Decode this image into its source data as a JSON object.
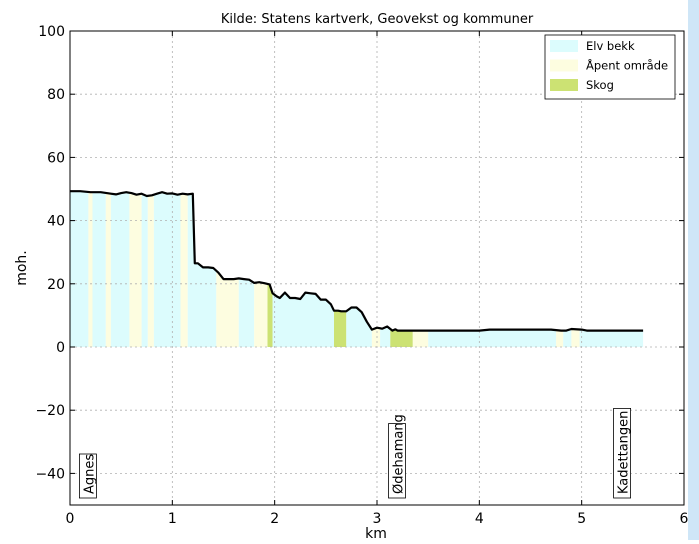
{
  "chart_data": {
    "type": "area",
    "title": "Kilde: Statens kartverk, Geovekst og kommuner",
    "xlabel": "km",
    "ylabel": "moh.",
    "xlim": [
      0,
      6
    ],
    "ylim": [
      -50,
      100
    ],
    "xticks": [
      0,
      1,
      2,
      3,
      4,
      5,
      6
    ],
    "yticks": [
      -40,
      -20,
      0,
      20,
      40,
      60,
      80,
      100
    ],
    "grid": true,
    "legend_position": "top-right",
    "legend": [
      {
        "label": "Elv bekk",
        "color": "#dcfcfd"
      },
      {
        "label": "Åpent område",
        "color": "#fdfde0"
      },
      {
        "label": "Skog",
        "color": "#cce273"
      }
    ],
    "colors": {
      "Elv bekk": "#dcfcfd",
      "Åpent område": "#fdfde0",
      "Skog": "#cce273",
      "elevation_line": "#000000"
    },
    "elevation_profile": {
      "x": [
        0,
        0.1,
        0.2,
        0.3,
        0.4,
        0.45,
        0.5,
        0.55,
        0.6,
        0.65,
        0.7,
        0.75,
        0.8,
        0.85,
        0.9,
        0.95,
        1.0,
        1.05,
        1.1,
        1.15,
        1.2,
        1.22,
        1.25,
        1.3,
        1.35,
        1.4,
        1.45,
        1.5,
        1.55,
        1.6,
        1.65,
        1.7,
        1.75,
        1.8,
        1.85,
        1.9,
        1.95,
        1.98,
        2.02,
        2.05,
        2.1,
        2.15,
        2.2,
        2.25,
        2.3,
        2.35,
        2.4,
        2.45,
        2.5,
        2.55,
        2.58,
        2.6,
        2.62,
        2.65,
        2.7,
        2.75,
        2.8,
        2.85,
        2.9,
        2.95,
        3.0,
        3.05,
        3.1,
        3.15,
        3.18,
        3.2,
        3.25,
        3.3,
        3.4,
        3.6,
        3.8,
        4.0,
        4.1,
        4.3,
        4.5,
        4.7,
        4.8,
        4.85,
        4.9,
        5.0,
        5.05,
        5.1,
        5.3,
        5.6
      ],
      "y": [
        49.3,
        49.3,
        49,
        49,
        48.5,
        48.3,
        48.7,
        49,
        48.7,
        48.2,
        48.5,
        47.8,
        48,
        48.5,
        49,
        48.5,
        48.6,
        48.2,
        48.5,
        48.3,
        48.5,
        26.5,
        26.5,
        25.2,
        25.2,
        25,
        23.5,
        21.5,
        21.5,
        21.5,
        21.7,
        21.5,
        21.3,
        20.3,
        20.5,
        20.2,
        19.8,
        17,
        16,
        15.5,
        17.2,
        15.5,
        15.5,
        15.2,
        17.2,
        17,
        16.8,
        15,
        15,
        13.5,
        11.5,
        11.5,
        11.5,
        11.3,
        11.3,
        12.5,
        12.5,
        11,
        8,
        5.5,
        6.1,
        5.8,
        6.5,
        5.2,
        5.6,
        5.2,
        5.2,
        5.2,
        5.2,
        5.2,
        5.2,
        5.2,
        5.5,
        5.5,
        5.5,
        5.5,
        5.2,
        5.2,
        5.7,
        5.5,
        5.2,
        5.2,
        5.2,
        5.2
      ]
    },
    "landcover_bands": [
      {
        "type": "Elv bekk",
        "x0": 0,
        "x1": 0.18
      },
      {
        "type": "Åpent område",
        "x0": 0.18,
        "x1": 0.22
      },
      {
        "type": "Elv bekk",
        "x0": 0.22,
        "x1": 0.35
      },
      {
        "type": "Åpent område",
        "x0": 0.35,
        "x1": 0.4
      },
      {
        "type": "Elv bekk",
        "x0": 0.4,
        "x1": 0.58
      },
      {
        "type": "Åpent område",
        "x0": 0.58,
        "x1": 0.7
      },
      {
        "type": "Elv bekk",
        "x0": 0.7,
        "x1": 0.76
      },
      {
        "type": "Åpent område",
        "x0": 0.76,
        "x1": 0.82
      },
      {
        "type": "Elv bekk",
        "x0": 0.82,
        "x1": 1.08
      },
      {
        "type": "Åpent område",
        "x0": 1.08,
        "x1": 1.15
      },
      {
        "type": "Elv bekk",
        "x0": 1.15,
        "x1": 1.43
      },
      {
        "type": "Åpent område",
        "x0": 1.43,
        "x1": 1.65
      },
      {
        "type": "Elv bekk",
        "x0": 1.65,
        "x1": 1.8
      },
      {
        "type": "Åpent område",
        "x0": 1.8,
        "x1": 1.93
      },
      {
        "type": "Skog",
        "x0": 1.93,
        "x1": 1.98
      },
      {
        "type": "Elv bekk",
        "x0": 1.98,
        "x1": 2.58
      },
      {
        "type": "Skog",
        "x0": 2.58,
        "x1": 2.7
      },
      {
        "type": "Elv bekk",
        "x0": 2.7,
        "x1": 2.95
      },
      {
        "type": "Åpent område",
        "x0": 2.95,
        "x1": 3.03
      },
      {
        "type": "Elv bekk",
        "x0": 3.03,
        "x1": 3.13
      },
      {
        "type": "Skog",
        "x0": 3.13,
        "x1": 3.35
      },
      {
        "type": "Åpent område",
        "x0": 3.35,
        "x1": 3.5
      },
      {
        "type": "Elv bekk",
        "x0": 3.5,
        "x1": 4.75
      },
      {
        "type": "Åpent område",
        "x0": 4.75,
        "x1": 4.82
      },
      {
        "type": "Elv bekk",
        "x0": 4.82,
        "x1": 4.9
      },
      {
        "type": "Åpent område",
        "x0": 4.9,
        "x1": 4.98
      },
      {
        "type": "Elv bekk",
        "x0": 4.98,
        "x1": 5.6
      }
    ],
    "annotations": [
      {
        "text": "Agnes",
        "x": 0.18
      },
      {
        "text": "Ødehamang",
        "x": 3.2
      },
      {
        "text": "Kadettangen",
        "x": 5.4
      }
    ]
  }
}
